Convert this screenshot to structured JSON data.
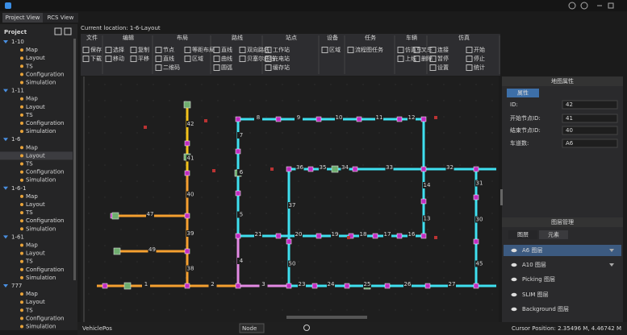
{
  "tabs": [
    "Project View",
    "RCS View"
  ],
  "project": {
    "title": "Project",
    "items": [
      {
        "name": "1-10",
        "children": [
          "Map",
          "Layout",
          "TS",
          "Configuration",
          "Simulation"
        ]
      },
      {
        "name": "1-11",
        "children": [
          "Map",
          "Layout",
          "TS",
          "Configuration",
          "Simulation"
        ]
      },
      {
        "name": "1-6",
        "children": [
          "Map",
          "Layout",
          "TS",
          "Configuration",
          "Simulation"
        ]
      },
      {
        "name": "1-6-1",
        "children": [
          "Map",
          "Layout",
          "TS",
          "Configuration",
          "Simulation"
        ]
      },
      {
        "name": "1-61",
        "children": [
          "Map",
          "Layout",
          "TS",
          "Configuration",
          "Simulation"
        ]
      },
      {
        "name": "777",
        "children": [
          "Map",
          "Layout",
          "TS",
          "Configuration",
          "Simulation"
        ]
      }
    ]
  },
  "breadcrumb": "Current location: 1-6-Layout",
  "toolbar": [
    {
      "group": "文件",
      "items": [
        "保存",
        "下载"
      ]
    },
    {
      "group": "编辑",
      "items": [
        "选择",
        "复制",
        "移动",
        "平移"
      ]
    },
    {
      "group": "布局",
      "items": [
        "节点",
        "等距布局",
        "直线",
        "区域",
        "二维码"
      ]
    },
    {
      "group": "路线",
      "items": [
        "直线",
        "双向路线",
        "曲线",
        "贝塞尔曲线",
        "圆弧"
      ]
    },
    {
      "group": "站点",
      "items": [
        "工作站",
        "充电站",
        "缓存站"
      ]
    },
    {
      "group": "设备",
      "items": [
        "区域"
      ]
    },
    {
      "group": "任务",
      "items": [
        "流程图任务"
      ]
    },
    {
      "group": "车辆",
      "items": [
        "仿真车",
        "叉车",
        "上线",
        "删除"
      ]
    },
    {
      "group": "仿真",
      "items": [
        "连接",
        "开始",
        "暂停",
        "停止",
        "设置",
        "统计"
      ]
    }
  ],
  "map": {
    "edges": [
      "42",
      "41",
      "40",
      "39",
      "38",
      "47",
      "49",
      "1",
      "2",
      "8",
      "9",
      "10",
      "11",
      "12",
      "7",
      "6",
      "5",
      "4",
      "21",
      "20",
      "19",
      "18",
      "17",
      "16",
      "3",
      "23",
      "24",
      "25",
      "26",
      "27",
      "36",
      "35",
      "34",
      "33",
      "32",
      "31",
      "30",
      "45",
      "14",
      "13",
      "37",
      "50"
    ]
  },
  "properties": {
    "title": "地图属性",
    "tab": "属性",
    "fields": [
      {
        "label": "ID:",
        "value": "42"
      },
      {
        "label": "开始节点ID:",
        "value": "41"
      },
      {
        "label": "结束节点ID:",
        "value": "40"
      },
      {
        "label": "车道数:",
        "value": "A6"
      }
    ]
  },
  "layers": {
    "title": "图层管理",
    "tabs": [
      "图层",
      "元素"
    ],
    "items": [
      "A6 图层",
      "A10 图层",
      "Picking 图层",
      "SLIM 图层",
      "Background 图层"
    ]
  },
  "status": {
    "left": "VehiclePos",
    "dropdown": "Node",
    "cursor": "Cursor Position: 2.35496 M, 4.46742 M"
  }
}
